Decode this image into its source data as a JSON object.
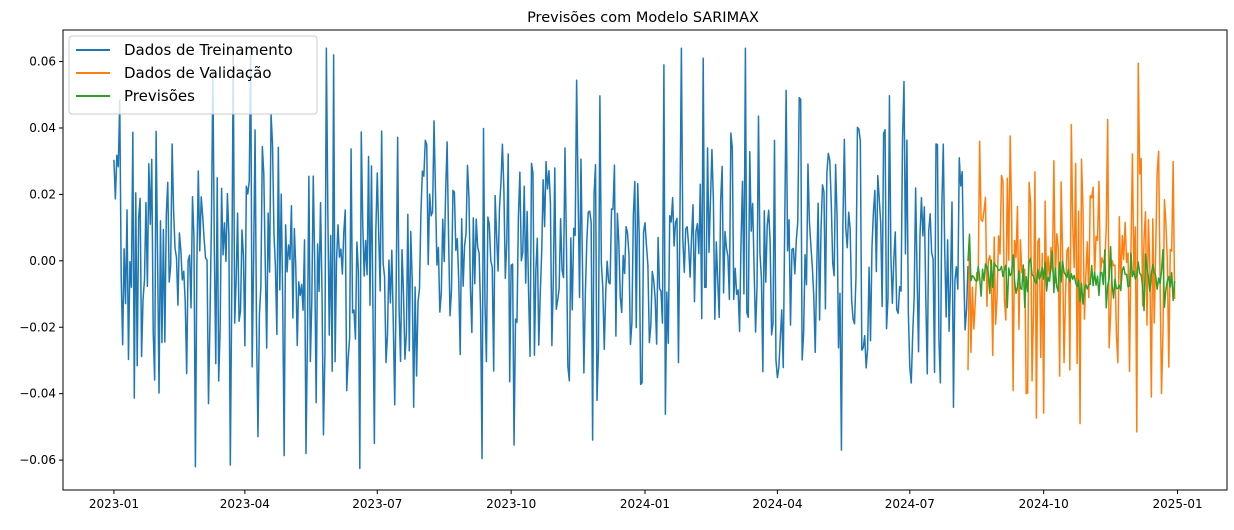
{
  "chart_data": {
    "type": "line",
    "title": "Previsões com Modelo SARIMAX",
    "xlabel": "",
    "ylabel": "",
    "xlim": [
      "2022-11-27",
      "2025-02-04"
    ],
    "ylim": [
      -0.069,
      0.0695
    ],
    "x_ticks": [
      "2023-01",
      "2023-04",
      "2023-07",
      "2023-10",
      "2024-01",
      "2024-04",
      "2024-07",
      "2024-10",
      "2025-01"
    ],
    "y_ticks": [
      -0.06,
      -0.04,
      -0.02,
      0.0,
      0.02,
      0.04,
      0.06
    ],
    "y_tick_labels": [
      "−0.06",
      "−0.04",
      "−0.02",
      "0.00",
      "0.02",
      "0.04",
      "0.06"
    ],
    "grid": false,
    "legend": "top-left",
    "series": [
      {
        "name": "Dados de Treinamento",
        "color": "#1f77b4",
        "start": "2023-01-01",
        "end": "2024-08-10",
        "seed": 7,
        "stats": {
          "mean": 0.0,
          "std": 0.021,
          "min": -0.0625,
          "max": 0.064
        },
        "peaks": [
          {
            "x": "2023-02-26",
            "y": -0.062
          },
          {
            "x": "2023-03-22",
            "y": -0.0615
          },
          {
            "x": "2023-03-24",
            "y": 0.063
          },
          {
            "x": "2023-05-27",
            "y": 0.064
          },
          {
            "x": "2023-06-19",
            "y": -0.0625
          },
          {
            "x": "2023-06-01",
            "y": 0.062
          },
          {
            "x": "2024-01-14",
            "y": 0.059
          },
          {
            "x": "2024-02-10",
            "y": 0.061
          },
          {
            "x": "2024-06-27",
            "y": 0.054
          },
          {
            "x": "2023-05-13",
            "y": -0.058
          },
          {
            "x": "2024-05-15",
            "y": -0.057
          },
          {
            "x": "2023-11-26",
            "y": -0.054
          },
          {
            "x": "2023-03-07",
            "y": -0.043
          },
          {
            "x": "2023-06-29",
            "y": -0.055
          }
        ]
      },
      {
        "name": "Dados de Validação",
        "color": "#ff7f0e",
        "start": "2024-08-10",
        "end": "2024-12-30",
        "seed": 13,
        "stats": {
          "mean": -0.002,
          "std": 0.019,
          "min": -0.0515,
          "max": 0.0595
        },
        "peaks": [
          {
            "x": "2024-08-18",
            "y": 0.036
          },
          {
            "x": "2024-09-19",
            "y": -0.04
          },
          {
            "x": "2024-10-20",
            "y": 0.041
          },
          {
            "x": "2024-10-26",
            "y": -0.049
          },
          {
            "x": "2024-12-04",
            "y": -0.0515
          },
          {
            "x": "2024-12-05",
            "y": 0.0595
          },
          {
            "x": "2024-12-14",
            "y": -0.041
          },
          {
            "x": "2024-12-19",
            "y": 0.033
          },
          {
            "x": "2024-12-26",
            "y": -0.032
          }
        ]
      },
      {
        "name": "Previsões",
        "color": "#2ca02c",
        "start": "2024-08-10",
        "end": "2024-12-30",
        "seed": 29,
        "stats": {
          "mean": -0.005,
          "std": 0.0035,
          "min": -0.015,
          "max": 0.008
        },
        "peaks": [
          {
            "x": "2024-08-11",
            "y": 0.008
          },
          {
            "x": "2024-09-18",
            "y": -0.014
          },
          {
            "x": "2024-10-28",
            "y": -0.013
          },
          {
            "x": "2024-12-09",
            "y": -0.015
          },
          {
            "x": "2024-12-23",
            "y": -0.014
          }
        ]
      }
    ]
  }
}
